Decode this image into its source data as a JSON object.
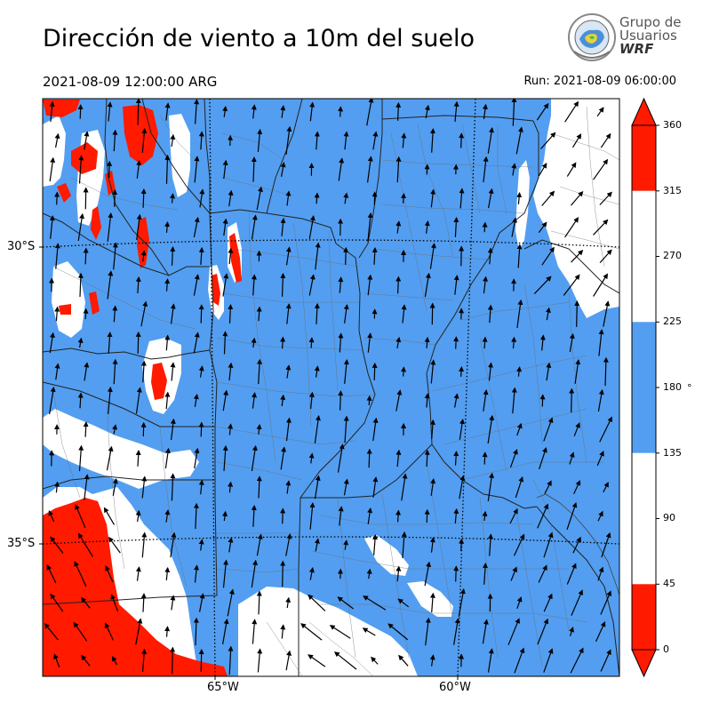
{
  "header": {
    "title": "Dirección de viento a 10m del suelo",
    "valid_time": "2021-08-09 12:00:00 ARG",
    "run_time": "Run: 2021-08-09 06:00:00"
  },
  "logo": {
    "line1": "Grupo de",
    "line2": "Usuarios",
    "line3": "WRF"
  },
  "map": {
    "lat_labels": [
      "30°S",
      "35°S"
    ],
    "lon_labels": [
      "65°W",
      "60°W"
    ],
    "wind_direction_deg_predominant": 180
  },
  "colorbar": {
    "unit": "°",
    "ticks": [
      "0",
      "45",
      "90",
      "135",
      "180",
      "225",
      "270",
      "315",
      "360"
    ],
    "bins": [
      {
        "from": 0,
        "to": 45,
        "color": "#ff1a00"
      },
      {
        "from": 45,
        "to": 135,
        "color": "#ffffff"
      },
      {
        "from": 135,
        "to": 225,
        "color": "#539ef0"
      },
      {
        "from": 225,
        "to": 315,
        "color": "#ffffff"
      },
      {
        "from": 315,
        "to": 360,
        "color": "#ff1a00"
      }
    ],
    "extend": "both"
  },
  "colors": {
    "blue": "#539ef0",
    "red": "#ff1a00",
    "white": "#ffffff"
  }
}
